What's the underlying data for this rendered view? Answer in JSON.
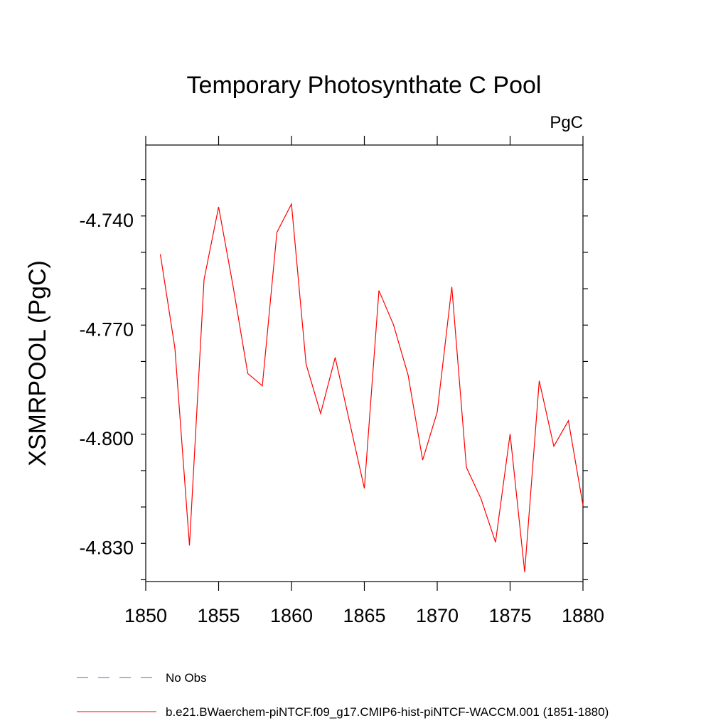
{
  "chart_data": {
    "type": "line",
    "title": "Temporary Photosynthate C Pool",
    "units_label": "PgC",
    "xlabel": "",
    "ylabel": "XSMRPOOL  (PgC)",
    "xlim": [
      1850,
      1880
    ],
    "ylim": [
      -4.8395,
      -4.7195
    ],
    "x_ticks": [
      1850,
      1855,
      1860,
      1865,
      1870,
      1875,
      1880
    ],
    "x_tick_labels": [
      "1850",
      "1855",
      "1860",
      "1865",
      "1870",
      "1875",
      "1880"
    ],
    "y_ticks": [
      -4.83,
      -4.8,
      -4.77,
      -4.74
    ],
    "y_tick_labels": [
      "-4.830",
      "-4.800",
      "-4.770",
      "-4.740"
    ],
    "grid": false,
    "legend_position": "bottom-left",
    "series": [
      {
        "name": "b.e21.BWaerchem-piNTCF.f09_g17.CMIP6-hist-piNTCF-WACCM.001 (1851-1880)",
        "color": "#ff0000",
        "style": "solid",
        "x": [
          1851,
          1852,
          1853,
          1854,
          1855,
          1856,
          1857,
          1858,
          1859,
          1860,
          1861,
          1862,
          1863,
          1864,
          1865,
          1866,
          1867,
          1868,
          1869,
          1870,
          1871,
          1872,
          1873,
          1874,
          1875,
          1876,
          1877,
          1878,
          1879,
          1880
        ],
        "y": [
          -4.7495,
          -4.7753,
          -4.8296,
          -4.7565,
          -4.7365,
          -4.7585,
          -4.7823,
          -4.7857,
          -4.7435,
          -4.7357,
          -4.7797,
          -4.7933,
          -4.7779,
          -4.7959,
          -4.8139,
          -4.7595,
          -4.7689,
          -4.7827,
          -4.8061,
          -4.7929,
          -4.7585,
          -4.8081,
          -4.8167,
          -4.8287,
          -4.7989,
          -4.8369,
          -4.7843,
          -4.8023,
          -4.7953,
          -4.8185
        ]
      },
      {
        "name": "No Obs",
        "color": "#6a5acd",
        "style": "dashed",
        "x": [],
        "y": []
      }
    ]
  }
}
